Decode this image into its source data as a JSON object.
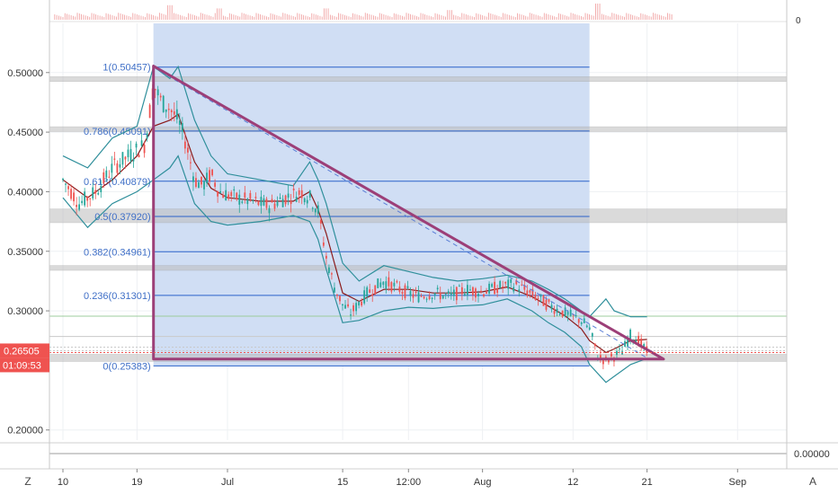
{
  "chart_data": {
    "type": "line",
    "instrument": "candlestick price chart with Bollinger Bands and Fibonacci retracement",
    "colors": {
      "background": "#ffffff",
      "grid": "#eef0f3",
      "fib_zone": "#cddcf3",
      "fib_line": "#2a62c9",
      "fib_label": "#3f6fc7",
      "gray_band": "#bdbdbd",
      "triangle": "#9c3f78",
      "dashed_line": "#5b7fd6",
      "bb_band": "#2f8f9b",
      "bb_mid": "#8b1a1a",
      "price_label": "#ef5350",
      "volume": "#ef9a9a",
      "axis_text": "#333333"
    },
    "y_axis": {
      "range": [
        0.1915,
        0.5413
      ],
      "ticks": [
        {
          "value": 0.5,
          "label": "0.50000"
        },
        {
          "value": 0.45,
          "label": "0.45000"
        },
        {
          "value": 0.4,
          "label": "0.40000"
        },
        {
          "value": 0.35,
          "label": "0.35000"
        },
        {
          "value": 0.3,
          "label": "0.30000"
        },
        {
          "value": 0.2,
          "label": "0.20000"
        }
      ],
      "current_price": {
        "value": 0.26505,
        "label": "0.26505",
        "countdown": "01:09:53"
      }
    },
    "x_axis": {
      "ticks": [
        {
          "label": "10",
          "day": 0
        },
        {
          "label": "19",
          "day": 9
        },
        {
          "label": "Jul",
          "day": 20
        },
        {
          "label": "15",
          "day": 34
        },
        {
          "label": "12:00",
          "day": 42
        },
        {
          "label": "Aug",
          "day": 51
        },
        {
          "label": "12",
          "day": 62
        },
        {
          "label": "21",
          "day": 71
        },
        {
          "label": "Sep",
          "day": 82
        }
      ]
    },
    "fibonacci": {
      "start_day": 11,
      "end_day": 64,
      "levels": [
        {
          "label": "1(0.50457)",
          "value": 0.50457
        },
        {
          "label": "0.786(0.45091)",
          "value": 0.45091
        },
        {
          "label": "0.618(0.40879)",
          "value": 0.40879
        },
        {
          "label": "0.5(0.37920)",
          "value": 0.3792
        },
        {
          "label": "0.382(0.34961)",
          "value": 0.34961
        },
        {
          "label": "0.236(0.31301)",
          "value": 0.31301
        },
        {
          "label": "0(0.25383)",
          "value": 0.25383
        }
      ]
    },
    "horizontal_zones": [
      {
        "from": 0.4925,
        "to": 0.4965
      },
      {
        "from": 0.4505,
        "to": 0.4545
      },
      {
        "from": 0.374,
        "to": 0.3855
      },
      {
        "from": 0.334,
        "to": 0.338
      },
      {
        "from": 0.2575,
        "to": 0.2635
      }
    ],
    "thin_levels": [
      0.2955,
      0.2785,
      0.2695,
      0.2665
    ],
    "triangle": [
      {
        "day": 11,
        "value": 0.5055
      },
      {
        "day": 11,
        "value": 0.2595
      },
      {
        "day": 73,
        "value": 0.2595
      }
    ],
    "dashed_line": [
      {
        "day": 11,
        "value": 0.5045
      },
      {
        "day": 71,
        "value": 0.2605
      }
    ],
    "price_path": [
      [
        0,
        0.41
      ],
      [
        2,
        0.39
      ],
      [
        4,
        0.4
      ],
      [
        6,
        0.42
      ],
      [
        8,
        0.43
      ],
      [
        10,
        0.44
      ],
      [
        11,
        0.49
      ],
      [
        12,
        0.475
      ],
      [
        13,
        0.47
      ],
      [
        14,
        0.46
      ],
      [
        15,
        0.44
      ],
      [
        16,
        0.41
      ],
      [
        17,
        0.405
      ],
      [
        18,
        0.415
      ],
      [
        19,
        0.4
      ],
      [
        21,
        0.395
      ],
      [
        23,
        0.392
      ],
      [
        25,
        0.388
      ],
      [
        27,
        0.395
      ],
      [
        29,
        0.4
      ],
      [
        30,
        0.395
      ],
      [
        31,
        0.385
      ],
      [
        32,
        0.345
      ],
      [
        33,
        0.32
      ],
      [
        34,
        0.305
      ],
      [
        35,
        0.298
      ],
      [
        37,
        0.315
      ],
      [
        39,
        0.325
      ],
      [
        41,
        0.318
      ],
      [
        43,
        0.312
      ],
      [
        45,
        0.315
      ],
      [
        47,
        0.312
      ],
      [
        49,
        0.318
      ],
      [
        51,
        0.316
      ],
      [
        53,
        0.32
      ],
      [
        55,
        0.322
      ],
      [
        57,
        0.314
      ],
      [
        59,
        0.305
      ],
      [
        61,
        0.298
      ],
      [
        63,
        0.292
      ],
      [
        64,
        0.285
      ],
      [
        65,
        0.262
      ],
      [
        66,
        0.258
      ],
      [
        67,
        0.262
      ],
      [
        68,
        0.266
      ],
      [
        69,
        0.28
      ],
      [
        70,
        0.275
      ],
      [
        71,
        0.265
      ]
    ],
    "bb_upper": [
      [
        0,
        0.43
      ],
      [
        3,
        0.42
      ],
      [
        6,
        0.445
      ],
      [
        9,
        0.455
      ],
      [
        11,
        0.505
      ],
      [
        13,
        0.495
      ],
      [
        14,
        0.505
      ],
      [
        16,
        0.46
      ],
      [
        18,
        0.43
      ],
      [
        20,
        0.415
      ],
      [
        24,
        0.41
      ],
      [
        28,
        0.405
      ],
      [
        30,
        0.425
      ],
      [
        31,
        0.41
      ],
      [
        32,
        0.39
      ],
      [
        34,
        0.34
      ],
      [
        36,
        0.325
      ],
      [
        39,
        0.338
      ],
      [
        42,
        0.333
      ],
      [
        45,
        0.328
      ],
      [
        48,
        0.325
      ],
      [
        51,
        0.327
      ],
      [
        54,
        0.33
      ],
      [
        57,
        0.325
      ],
      [
        59,
        0.318
      ],
      [
        61,
        0.31
      ],
      [
        63,
        0.3
      ],
      [
        64,
        0.295
      ],
      [
        66,
        0.31
      ],
      [
        67,
        0.3
      ],
      [
        69,
        0.295
      ],
      [
        71,
        0.295
      ]
    ],
    "bb_lower": [
      [
        0,
        0.395
      ],
      [
        3,
        0.37
      ],
      [
        6,
        0.39
      ],
      [
        9,
        0.4
      ],
      [
        11,
        0.41
      ],
      [
        13,
        0.42
      ],
      [
        14,
        0.43
      ],
      [
        16,
        0.39
      ],
      [
        18,
        0.375
      ],
      [
        20,
        0.372
      ],
      [
        24,
        0.375
      ],
      [
        28,
        0.38
      ],
      [
        30,
        0.375
      ],
      [
        31,
        0.36
      ],
      [
        32,
        0.335
      ],
      [
        34,
        0.29
      ],
      [
        36,
        0.292
      ],
      [
        39,
        0.3
      ],
      [
        42,
        0.303
      ],
      [
        45,
        0.302
      ],
      [
        48,
        0.304
      ],
      [
        51,
        0.305
      ],
      [
        54,
        0.31
      ],
      [
        57,
        0.3
      ],
      [
        59,
        0.29
      ],
      [
        61,
        0.282
      ],
      [
        63,
        0.27
      ],
      [
        64,
        0.255
      ],
      [
        66,
        0.24
      ],
      [
        67,
        0.245
      ],
      [
        69,
        0.255
      ],
      [
        71,
        0.26
      ]
    ],
    "bb_middle": [
      [
        0,
        0.41
      ],
      [
        3,
        0.395
      ],
      [
        6,
        0.41
      ],
      [
        9,
        0.43
      ],
      [
        11,
        0.455
      ],
      [
        13,
        0.46
      ],
      [
        14,
        0.465
      ],
      [
        16,
        0.425
      ],
      [
        18,
        0.403
      ],
      [
        20,
        0.395
      ],
      [
        24,
        0.392
      ],
      [
        28,
        0.392
      ],
      [
        30,
        0.4
      ],
      [
        31,
        0.385
      ],
      [
        32,
        0.365
      ],
      [
        34,
        0.315
      ],
      [
        36,
        0.308
      ],
      [
        39,
        0.318
      ],
      [
        42,
        0.318
      ],
      [
        45,
        0.315
      ],
      [
        48,
        0.315
      ],
      [
        51,
        0.316
      ],
      [
        54,
        0.32
      ],
      [
        57,
        0.312
      ],
      [
        59,
        0.304
      ],
      [
        61,
        0.296
      ],
      [
        63,
        0.285
      ],
      [
        64,
        0.275
      ],
      [
        66,
        0.265
      ],
      [
        67,
        0.268
      ],
      [
        69,
        0.275
      ],
      [
        71,
        0.276
      ]
    ],
    "volume_spikes": [
      {
        "day": 13,
        "size": 0.9
      },
      {
        "day": 19,
        "size": 0.7
      },
      {
        "day": 32,
        "size": 0.7
      },
      {
        "day": 47,
        "size": 0.6
      },
      {
        "day": 65,
        "size": 1.0
      }
    ],
    "indicator_axis_label": "0.00000",
    "volume_axis_label": "0"
  },
  "controls": {
    "timezone_label": "Z",
    "autoscale_label": "A"
  }
}
